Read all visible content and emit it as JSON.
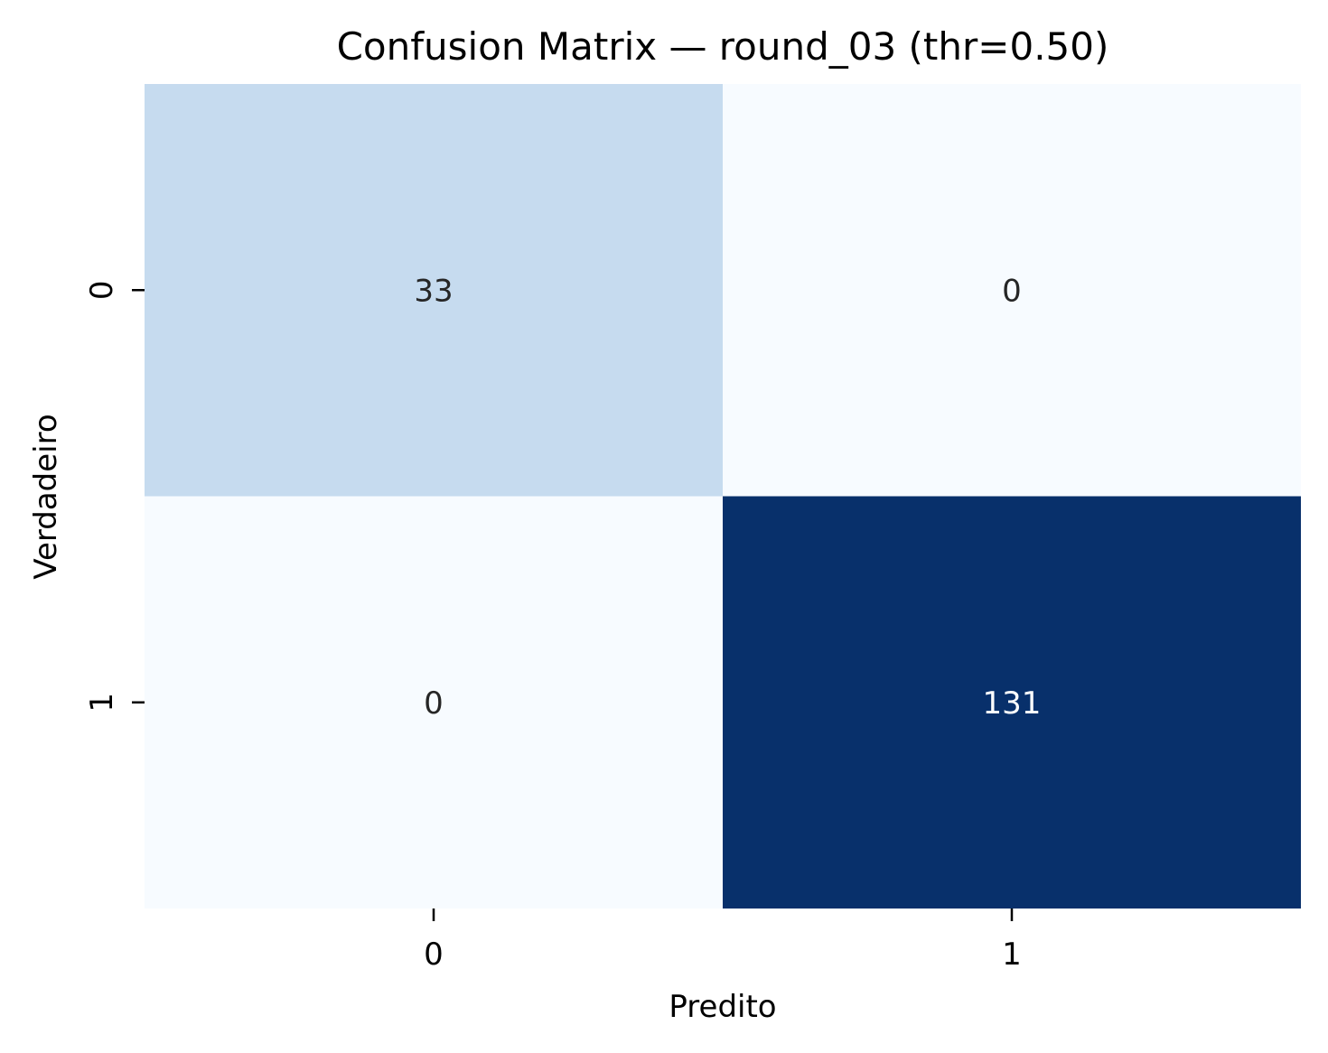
{
  "chart_data": {
    "type": "heatmap",
    "title": "Confusion Matrix — round_03 (thr=0.50)",
    "xlabel": "Predito",
    "ylabel": "Verdadeiro",
    "x_categories": [
      "0",
      "1"
    ],
    "y_categories": [
      "0",
      "1"
    ],
    "values": [
      [
        33,
        0
      ],
      [
        0,
        131
      ]
    ],
    "value_range": [
      0,
      131
    ],
    "colormap": "Blues",
    "colors": {
      "low": "#f7fbff",
      "mid": "#c6dbef",
      "high": "#08306b",
      "text_dark": "#262626",
      "text_light": "#ffffff"
    },
    "colorbar": false,
    "grid": false
  }
}
